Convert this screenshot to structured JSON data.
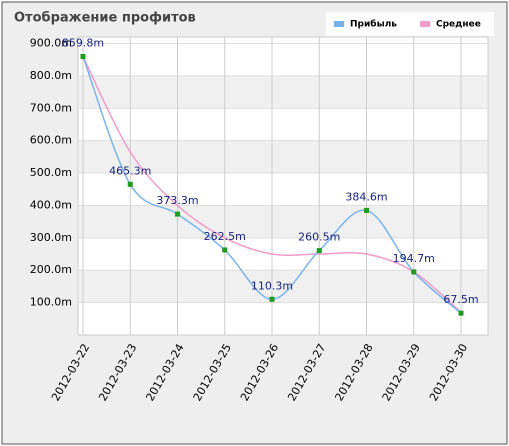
{
  "chart_data": {
    "type": "line",
    "title": "Отображение профитов",
    "categories": [
      "2012-03-22",
      "2012-03-23",
      "2012-03-24",
      "2012-03-25",
      "2012-03-26",
      "2012-03-27",
      "2012-03-28",
      "2012-03-29",
      "2012-03-30"
    ],
    "series": [
      {
        "name": "Прибыль",
        "color": "#7ab4ea",
        "marker_color": "#1e9a1e",
        "values": [
          859.8,
          465.3,
          373.3,
          262.5,
          110.3,
          260.5,
          384.6,
          194.7,
          67.5
        ],
        "value_labels": [
          "859.8m",
          "465.3m",
          "373.3m",
          "262.5m",
          "110.3m",
          "260.5m",
          "384.6m",
          "194.7m",
          "67.5m"
        ]
      },
      {
        "name": "Среднее",
        "color": "#f19ccb",
        "values": [
          859.8,
          565,
          400,
          300,
          250,
          250,
          250,
          195,
          70
        ]
      }
    ],
    "ylim": [
      0,
      920
    ],
    "yticks": [
      {
        "value": 100,
        "label": "100.0m"
      },
      {
        "value": 200,
        "label": "200.0m"
      },
      {
        "value": 300,
        "label": "300.0m"
      },
      {
        "value": 400,
        "label": "400.0m"
      },
      {
        "value": 500,
        "label": "500.0m"
      },
      {
        "value": 600,
        "label": "600.0m"
      },
      {
        "value": 700,
        "label": "700.0m"
      },
      {
        "value": 800,
        "label": "800.0m"
      },
      {
        "value": 900,
        "label": "900.0m"
      }
    ],
    "grid": true,
    "band_color": "#f0f0f0",
    "legend": "top-right"
  }
}
